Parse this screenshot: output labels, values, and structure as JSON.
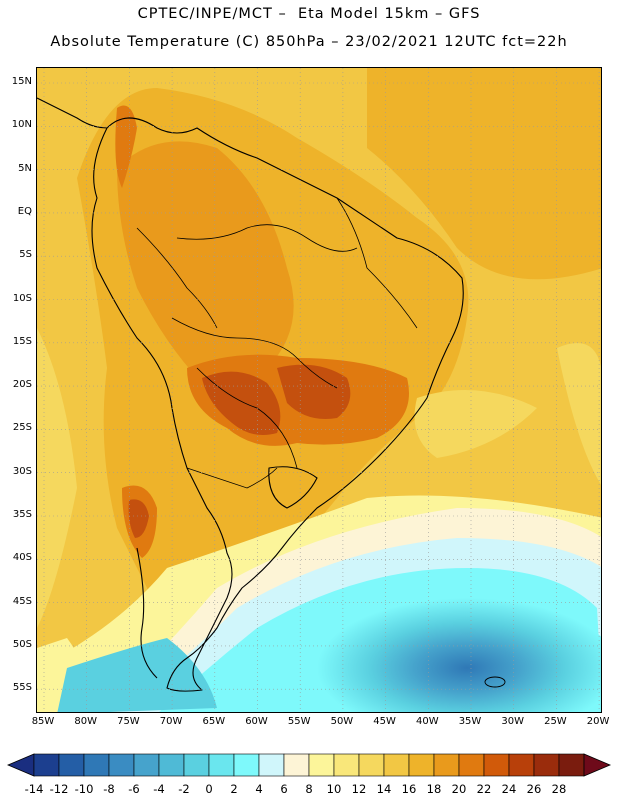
{
  "header": {
    "line1": "CPTEC/INPE/MCT –  Eta Model 15km – GFS",
    "line2": "Absolute Temperature (C) 850hPa – 23/02/2021 12UTC fct=22h"
  },
  "map": {
    "lat_labels": [
      "15N",
      "10N",
      "5N",
      "EQ",
      "5S",
      "10S",
      "15S",
      "20S",
      "25S",
      "30S",
      "35S",
      "40S",
      "45S",
      "50S",
      "55S"
    ],
    "lon_labels": [
      "85W",
      "80W",
      "75W",
      "70W",
      "65W",
      "60W",
      "55W",
      "50W",
      "45W",
      "40W",
      "35W",
      "30W",
      "25W",
      "20W"
    ]
  },
  "colorbar": {
    "labels": [
      "-14",
      "-12",
      "-10",
      "-8",
      "-6",
      "-4",
      "-2",
      "0",
      "2",
      "4",
      "6",
      "8",
      "10",
      "12",
      "14",
      "16",
      "18",
      "20",
      "22",
      "24",
      "26",
      "28"
    ],
    "colors": [
      "#1c3f8f",
      "#245ea6",
      "#2f78b6",
      "#3a8cc2",
      "#46a3cc",
      "#4fbad6",
      "#5ad0e0",
      "#6ae6ee",
      "#7ef9fb",
      "#d0f6fb",
      "#fdf4d6",
      "#fcf59a",
      "#f9e77a",
      "#f5d85e",
      "#f2c744",
      "#eeb32a",
      "#e99a1c",
      "#e07a10",
      "#d15a0a",
      "#b8400a",
      "#9a2c0c",
      "#7a1c0e"
    ],
    "left_arrow_color": "#1a2e80",
    "right_arrow_color": "#6e0a1a"
  },
  "palette": {
    "ocean_warm": "#f2c744",
    "land_warm": "#eeb32a",
    "land_hot": "#e07a10",
    "core_hot": "#c4500e",
    "cold_ocean": "#7ef9fb",
    "coast_line": "#000000",
    "grid_line": "#9a9a9a"
  }
}
